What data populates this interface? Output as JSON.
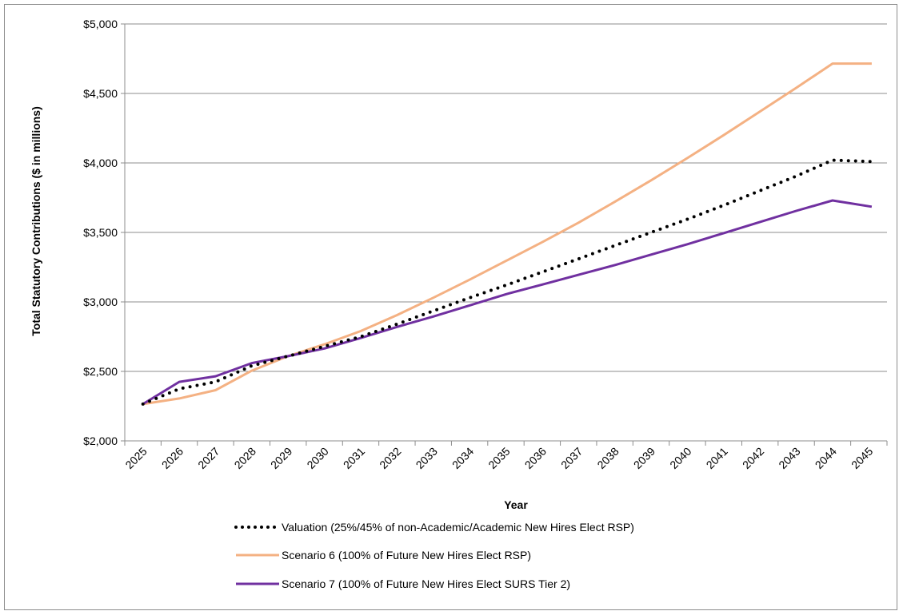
{
  "chart_data": {
    "type": "line",
    "title": "",
    "xlabel": "Year",
    "ylabel": "Total Statutory Contributions ($ in millions)",
    "x": [
      "2025",
      "2026",
      "2027",
      "2028",
      "2029",
      "2030",
      "2031",
      "2032",
      "2033",
      "2034",
      "2035",
      "2036",
      "2037",
      "2038",
      "2039",
      "2040",
      "2041",
      "2042",
      "2043",
      "2044",
      "2045"
    ],
    "ylim": [
      2000,
      5000
    ],
    "yticks": [
      2000,
      2500,
      3000,
      3500,
      4000,
      4500,
      5000
    ],
    "ytick_labels": [
      "$2,000",
      "$2,500",
      "$3,000",
      "$3,500",
      "$4,000",
      "$4,500",
      "$5,000"
    ],
    "grid": true,
    "legend_position": "bottom",
    "series": [
      {
        "name": "Valuation (25%/45% of non-Academic/Academic New Hires Elect RSP)",
        "color": "#000000",
        "style": "dotted",
        "values": [
          2265,
          2375,
          2425,
          2540,
          2610,
          2680,
          2750,
          2840,
          2935,
          3030,
          3120,
          3215,
          3310,
          3405,
          3500,
          3595,
          3695,
          3800,
          3905,
          4020,
          4010
        ]
      },
      {
        "name": "Scenario 6 (100% of Future New Hires Elect RSP)",
        "color": "#f4b183",
        "style": "solid",
        "values": [
          2265,
          2305,
          2365,
          2505,
          2610,
          2695,
          2790,
          2905,
          3030,
          3160,
          3295,
          3430,
          3570,
          3720,
          3875,
          4035,
          4200,
          4370,
          4540,
          4715,
          4715
        ]
      },
      {
        "name": "Scenario 7 (100% of Future New Hires Elect SURS Tier 2)",
        "color": "#7030a0",
        "style": "solid",
        "values": [
          2265,
          2425,
          2465,
          2560,
          2610,
          2665,
          2740,
          2820,
          2895,
          2975,
          3055,
          3125,
          3195,
          3265,
          3340,
          3415,
          3495,
          3575,
          3655,
          3730,
          3685
        ]
      }
    ]
  }
}
